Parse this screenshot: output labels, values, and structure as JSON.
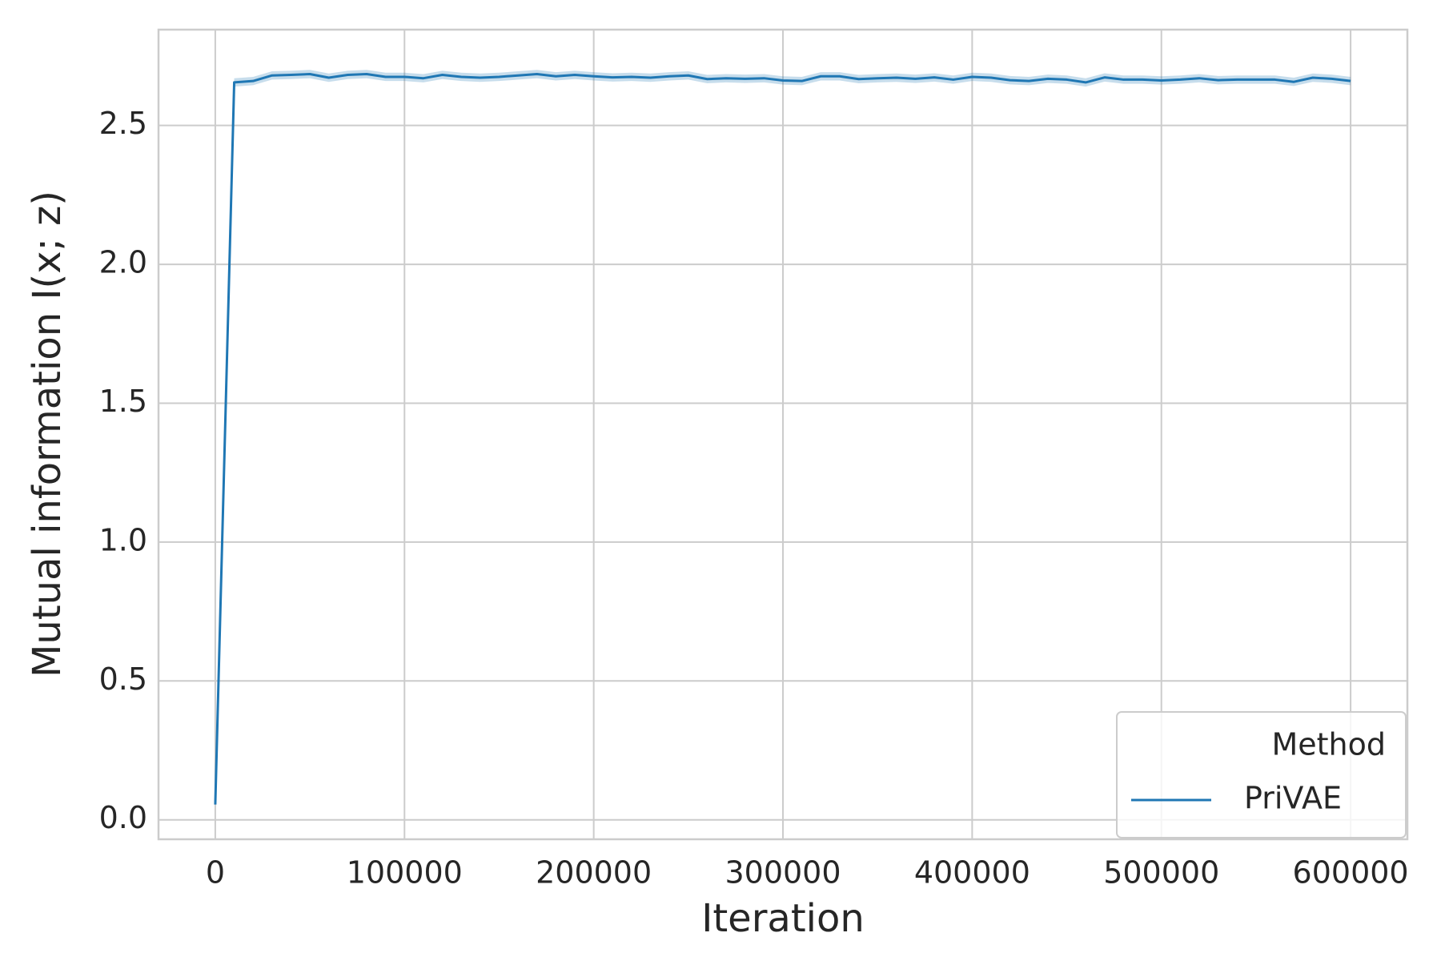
{
  "chart_data": {
    "type": "line",
    "x_label": "Iteration",
    "y_label": "Mutual information I(x; z)",
    "x": [
      0,
      10000,
      20000,
      30000,
      40000,
      50000,
      60000,
      70000,
      80000,
      90000,
      100000,
      110000,
      120000,
      130000,
      140000,
      150000,
      160000,
      170000,
      180000,
      190000,
      200000,
      210000,
      220000,
      230000,
      240000,
      250000,
      260000,
      270000,
      280000,
      290000,
      300000,
      310000,
      320000,
      330000,
      340000,
      350000,
      360000,
      370000,
      380000,
      390000,
      400000,
      410000,
      420000,
      430000,
      440000,
      450000,
      460000,
      470000,
      480000,
      490000,
      500000,
      510000,
      520000,
      530000,
      540000,
      550000,
      560000,
      570000,
      580000,
      590000,
      600000
    ],
    "series": [
      {
        "name": "PriVAE",
        "color": "#1f77b4",
        "values": [
          0.055,
          2.655,
          2.66,
          2.68,
          2.682,
          2.685,
          2.672,
          2.682,
          2.685,
          2.675,
          2.675,
          2.67,
          2.682,
          2.675,
          2.672,
          2.675,
          2.68,
          2.685,
          2.677,
          2.682,
          2.677,
          2.673,
          2.675,
          2.672,
          2.677,
          2.68,
          2.667,
          2.67,
          2.668,
          2.67,
          2.662,
          2.66,
          2.677,
          2.677,
          2.667,
          2.67,
          2.672,
          2.668,
          2.673,
          2.665,
          2.675,
          2.672,
          2.663,
          2.66,
          2.668,
          2.665,
          2.655,
          2.673,
          2.665,
          2.665,
          2.662,
          2.665,
          2.67,
          2.663,
          2.665,
          2.665,
          2.665,
          2.657,
          2.672,
          2.668,
          2.66
        ],
        "lower": [
          0.055,
          2.64,
          2.645,
          2.665,
          2.667,
          2.67,
          2.657,
          2.667,
          2.67,
          2.66,
          2.66,
          2.655,
          2.667,
          2.66,
          2.657,
          2.66,
          2.665,
          2.67,
          2.662,
          2.667,
          2.662,
          2.658,
          2.66,
          2.657,
          2.662,
          2.665,
          2.652,
          2.655,
          2.653,
          2.655,
          2.647,
          2.645,
          2.662,
          2.662,
          2.652,
          2.655,
          2.657,
          2.653,
          2.658,
          2.65,
          2.66,
          2.657,
          2.648,
          2.645,
          2.653,
          2.65,
          2.64,
          2.658,
          2.65,
          2.65,
          2.647,
          2.65,
          2.655,
          2.648,
          2.65,
          2.65,
          2.65,
          2.642,
          2.657,
          2.653,
          2.645
        ],
        "upper": [
          0.055,
          2.67,
          2.675,
          2.695,
          2.697,
          2.7,
          2.687,
          2.697,
          2.7,
          2.69,
          2.69,
          2.685,
          2.697,
          2.69,
          2.687,
          2.69,
          2.695,
          2.7,
          2.692,
          2.697,
          2.692,
          2.688,
          2.69,
          2.687,
          2.692,
          2.695,
          2.682,
          2.685,
          2.683,
          2.685,
          2.677,
          2.675,
          2.692,
          2.692,
          2.682,
          2.685,
          2.687,
          2.683,
          2.688,
          2.68,
          2.69,
          2.687,
          2.678,
          2.675,
          2.683,
          2.68,
          2.67,
          2.688,
          2.68,
          2.68,
          2.677,
          2.68,
          2.685,
          2.678,
          2.68,
          2.68,
          2.68,
          2.672,
          2.687,
          2.683,
          2.675
        ]
      }
    ],
    "xlim": [
      -30000,
      630000
    ],
    "ylim": [
      -0.07,
      2.845
    ],
    "xticks": [
      0,
      100000,
      200000,
      300000,
      400000,
      500000,
      600000
    ],
    "yticks": [
      {
        "value": 0,
        "label": "0.0"
      },
      0.5,
      {
        "value": 1,
        "label": "1.0"
      },
      1.5,
      {
        "value": 2,
        "label": "2.0"
      },
      2.5
    ],
    "grid": true,
    "legend_title": "Method",
    "legend_position": "lower right"
  }
}
